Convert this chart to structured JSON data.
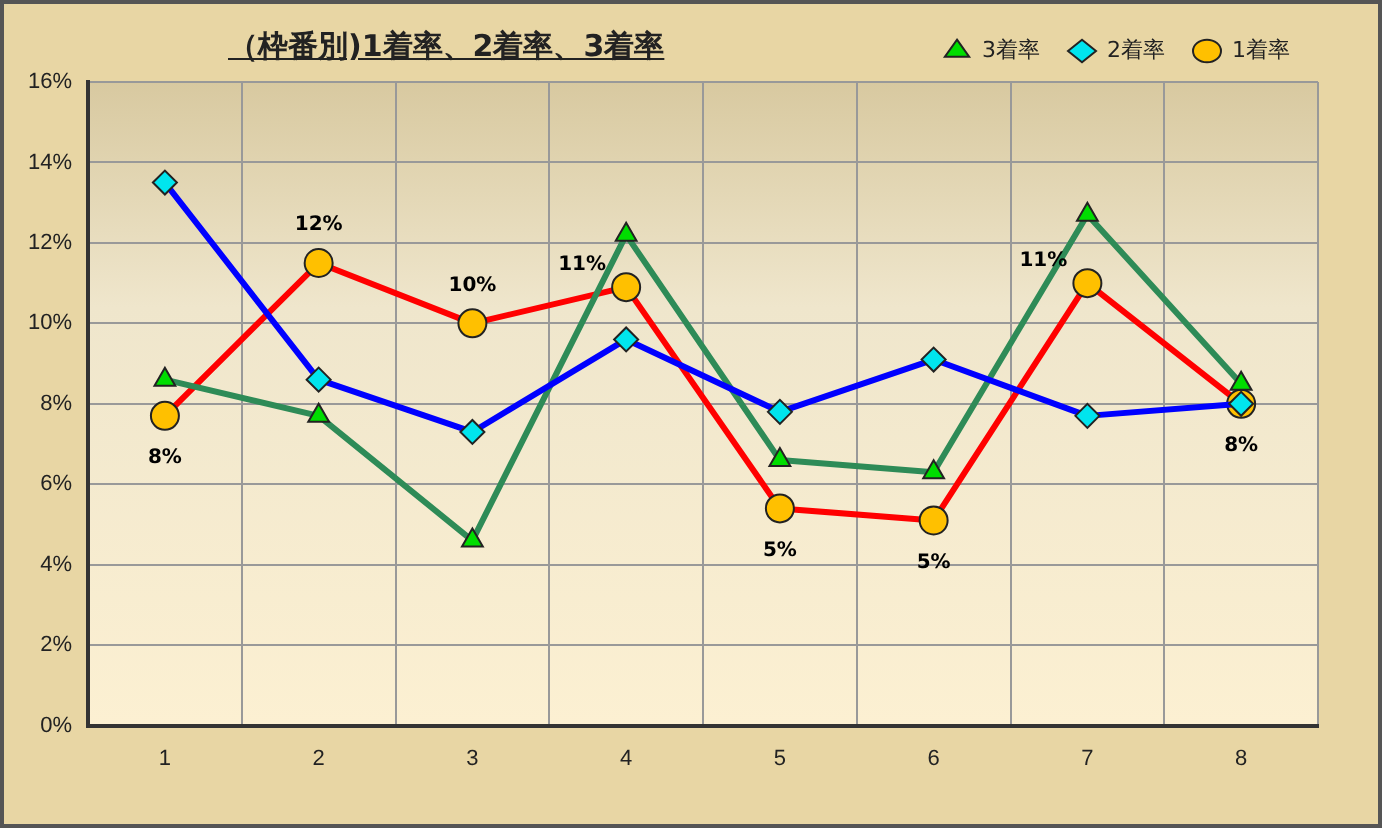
{
  "chart_data": {
    "type": "line",
    "title": "（枠番別)1着率、2着率、3着率",
    "categories": [
      "1",
      "2",
      "3",
      "4",
      "5",
      "6",
      "7",
      "8"
    ],
    "series": [
      {
        "name": "3着率",
        "color": "#2e8b57",
        "marker": "triangle",
        "values": [
          8.6,
          7.7,
          4.6,
          12.2,
          6.6,
          6.3,
          12.7,
          8.5
        ]
      },
      {
        "name": "2着率",
        "color": "#0000ff",
        "marker": "diamond",
        "values": [
          13.5,
          8.6,
          7.3,
          9.6,
          7.8,
          9.1,
          7.7,
          8.0
        ]
      },
      {
        "name": "1着率",
        "color": "#ff0000",
        "marker": "circle",
        "values": [
          7.7,
          11.5,
          10.0,
          10.9,
          5.4,
          5.1,
          11.0,
          8.0
        ],
        "value_labels": [
          "8%",
          "12%",
          "10%",
          "11%",
          "5%",
          "5%",
          "11%",
          "8%"
        ]
      }
    ],
    "ylim": [
      0,
      16
    ],
    "yticks": [
      {
        "value": 0,
        "label": "0%"
      },
      {
        "value": 2,
        "label": "2%"
      },
      {
        "value": 4,
        "label": "4%"
      },
      {
        "value": 6,
        "label": "6%"
      },
      {
        "value": 8,
        "label": "8%"
      },
      {
        "value": 10,
        "label": "10%"
      },
      {
        "value": 12,
        "label": "12%"
      },
      {
        "value": 14,
        "label": "14%"
      },
      {
        "value": 16,
        "label": "16%"
      }
    ],
    "grid": true,
    "legend": "top right",
    "line_style": "solid"
  }
}
